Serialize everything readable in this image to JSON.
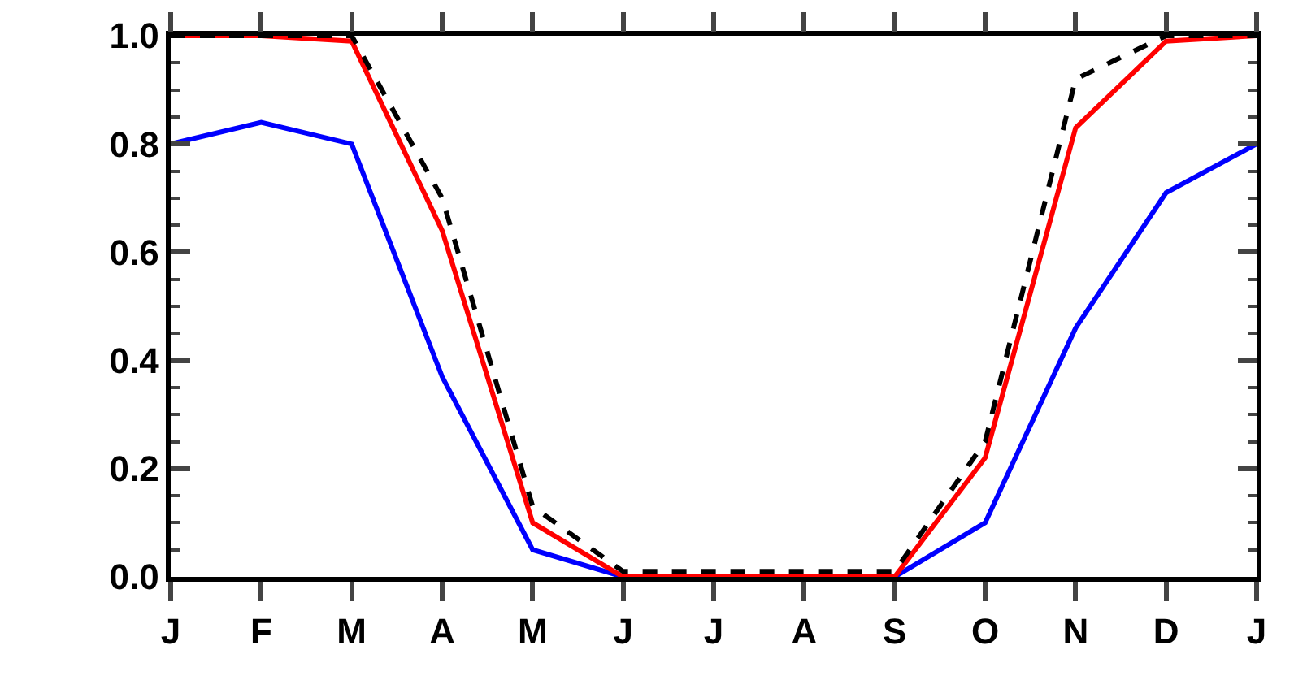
{
  "chart_data": {
    "type": "line",
    "categories": [
      "J",
      "F",
      "M",
      "A",
      "M",
      "J",
      "J",
      "A",
      "S",
      "O",
      "N",
      "D",
      "J"
    ],
    "series": [
      {
        "color": "#0000ff",
        "values": [
          0.8,
          0.84,
          0.8,
          0.37,
          0.05,
          0,
          0,
          0,
          0,
          0.1,
          0.46,
          0.71,
          0.8
        ]
      },
      {
        "color": "#ff0000",
        "values": [
          1,
          1,
          0.99,
          0.64,
          0.1,
          0,
          0,
          0,
          0,
          0.22,
          0.83,
          0.99,
          1
        ]
      },
      {
        "color": "#000000",
        "line_style": "dashed",
        "values": [
          1,
          1,
          1,
          0.7,
          0.13,
          0.01,
          0.01,
          0.01,
          0.01,
          0.25,
          0.92,
          1,
          1
        ]
      }
    ],
    "ylim": [
      0,
      1
    ],
    "yticks": [
      {
        "value": 0,
        "label": "0.0"
      },
      {
        "value": 0.2,
        "label": "0.2"
      },
      {
        "value": 0.4,
        "label": "0.4"
      },
      {
        "value": 0.6,
        "label": "0.6"
      },
      {
        "value": 0.8,
        "label": "0.8"
      },
      {
        "value": 1,
        "label": "1.0"
      }
    ],
    "grid": false
  }
}
